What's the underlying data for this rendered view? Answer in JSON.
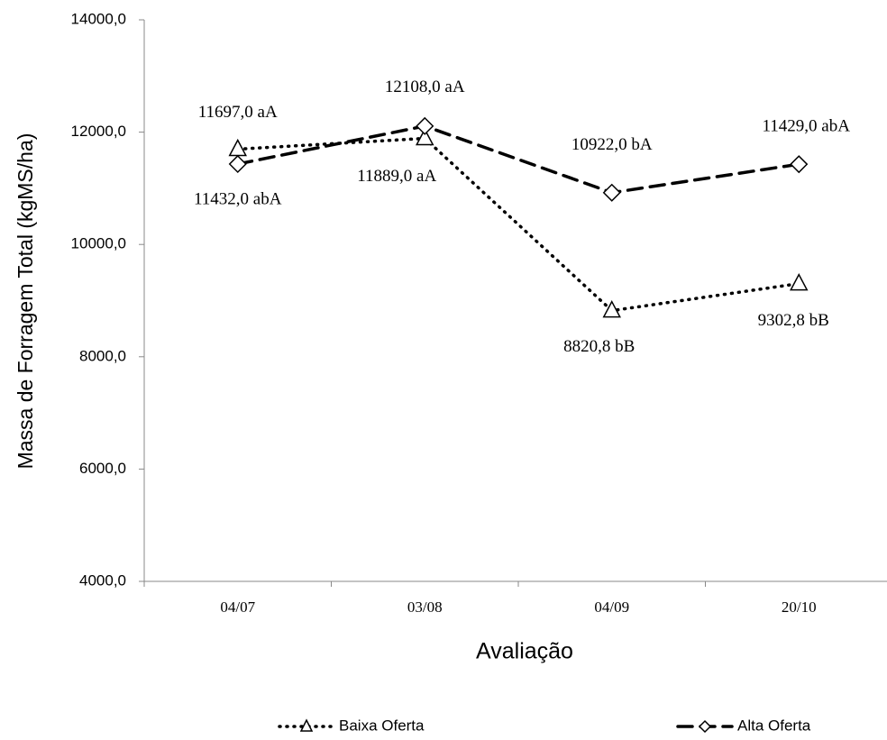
{
  "chart_data": {
    "type": "line",
    "x_label": "Avaliação",
    "y_label": "Massa de Forragem Total (kgMS/ha)",
    "categories": [
      "04/07",
      "03/08",
      "04/09",
      "20/10"
    ],
    "ylim": [
      4000,
      14000
    ],
    "yticks": [
      {
        "value": 4000,
        "label": "4000,0"
      },
      {
        "value": 6000,
        "label": "6000,0"
      },
      {
        "value": 8000,
        "label": "8000,0"
      },
      {
        "value": 10000,
        "label": "10000,0"
      },
      {
        "value": 12000,
        "label": "12000,0"
      },
      {
        "value": 14000,
        "label": "14000,0"
      }
    ],
    "grid": false,
    "legend": "bottom",
    "series": [
      {
        "name": "Baixa Oferta",
        "color": "#000000",
        "marker": "triangle",
        "style": "dotted",
        "values": [
          11697,
          11889,
          8820.8,
          9302.8
        ],
        "value_labels": [
          "11697,0 aA",
          "11889,0 aA",
          "8820,8 bB",
          "9302,8 bB"
        ]
      },
      {
        "name": "Alta Oferta",
        "color": "#000000",
        "marker": "diamond",
        "style": "dashed",
        "values": [
          11432,
          12108,
          10922,
          11429
        ],
        "value_labels": [
          "11432,0 abA",
          "12108,0 aA",
          "10922,0 bA",
          "11429,0 abA"
        ]
      }
    ]
  }
}
